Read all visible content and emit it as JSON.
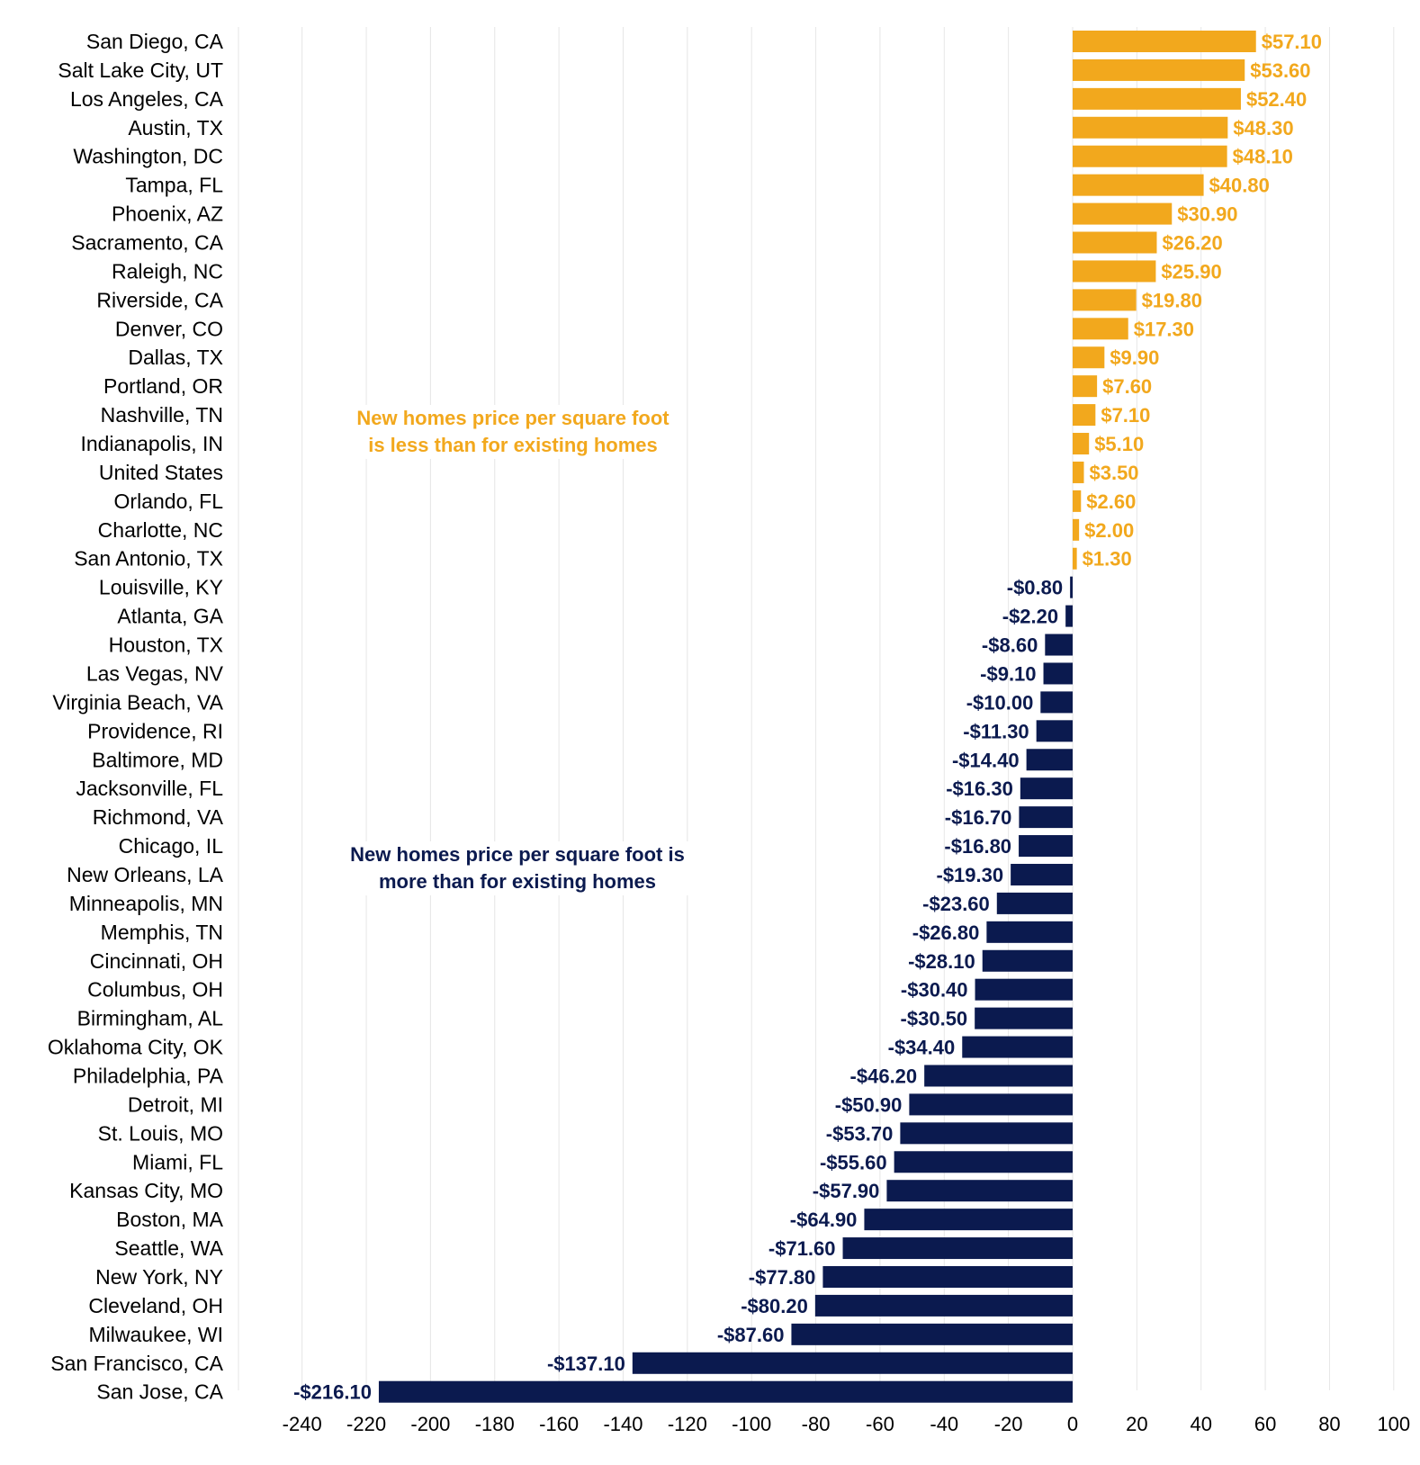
{
  "chart_data": {
    "type": "bar",
    "orientation": "horizontal",
    "categories": [
      "San Diego, CA",
      "Salt Lake City, UT",
      "Los Angeles, CA",
      "Austin, TX",
      "Washington, DC",
      "Tampa, FL",
      "Phoenix, AZ",
      "Sacramento, CA",
      "Raleigh, NC",
      "Riverside, CA",
      "Denver, CO",
      "Dallas, TX",
      "Portland, OR",
      "Nashville, TN",
      "Indianapolis, IN",
      "United States",
      "Orlando, FL",
      "Charlotte, NC",
      "San Antonio, TX",
      "Louisville, KY",
      "Atlanta, GA",
      "Houston, TX",
      "Las Vegas, NV",
      "Virginia Beach, VA",
      "Providence, RI",
      "Baltimore, MD",
      "Jacksonville, FL",
      "Richmond, VA",
      "Chicago, IL",
      "New Orleans, LA",
      "Minneapolis, MN",
      "Memphis, TN",
      "Cincinnati, OH",
      "Columbus, OH",
      "Birmingham, AL",
      "Oklahoma City, OK",
      "Philadelphia, PA",
      "Detroit, MI",
      "St. Louis, MO",
      "Miami, FL",
      "Kansas City, MO",
      "Boston, MA",
      "Seattle, WA",
      "New York, NY",
      "Cleveland, OH",
      "Milwaukee, WI",
      "San Francisco, CA",
      "San Jose, CA"
    ],
    "values": [
      57.1,
      53.6,
      52.4,
      48.3,
      48.1,
      40.8,
      30.9,
      26.2,
      25.9,
      19.8,
      17.3,
      9.9,
      7.6,
      7.1,
      5.1,
      3.5,
      2.6,
      2.0,
      1.3,
      -0.8,
      -2.2,
      -8.6,
      -9.1,
      -10.0,
      -11.3,
      -14.4,
      -16.3,
      -16.7,
      -16.8,
      -19.3,
      -23.6,
      -26.8,
      -28.1,
      -30.4,
      -30.5,
      -34.4,
      -46.2,
      -50.9,
      -53.7,
      -55.6,
      -57.9,
      -64.9,
      -71.6,
      -77.8,
      -80.2,
      -87.6,
      -137.1,
      -216.1
    ],
    "value_labels": [
      "$57.10",
      "$53.60",
      "$52.40",
      "$48.30",
      "$48.10",
      "$40.80",
      "$30.90",
      "$26.20",
      "$25.90",
      "$19.80",
      "$17.30",
      "$9.90",
      "$7.60",
      "$7.10",
      "$5.10",
      "$3.50",
      "$2.60",
      "$2.00",
      "$1.30",
      "-$0.80",
      "-$2.20",
      "-$8.60",
      "-$9.10",
      "-$10.00",
      "-$11.30",
      "-$14.40",
      "-$16.30",
      "-$16.70",
      "-$16.80",
      "-$19.30",
      "-$23.60",
      "-$26.80",
      "-$28.10",
      "-$30.40",
      "-$30.50",
      "-$34.40",
      "-$46.20",
      "-$50.90",
      "-$53.70",
      "-$55.60",
      "-$57.90",
      "-$64.90",
      "-$71.60",
      "-$77.80",
      "-$80.20",
      "-$87.60",
      "-$137.10",
      "-$216.10"
    ],
    "xlim": [
      -260,
      100
    ],
    "xticks": [
      -240,
      -220,
      -200,
      -180,
      -160,
      -140,
      -120,
      -100,
      -80,
      -60,
      -40,
      -20,
      0,
      20,
      40,
      60,
      80,
      100
    ],
    "grid": true,
    "colors": {
      "positive": "#F2A81D",
      "negative": "#0B1A4F",
      "grid": "#E6E6E6"
    },
    "annotations": {
      "positive": "New homes price per square foot is less than for existing homes",
      "negative": "New homes price per square foot is more than for existing homes"
    }
  }
}
